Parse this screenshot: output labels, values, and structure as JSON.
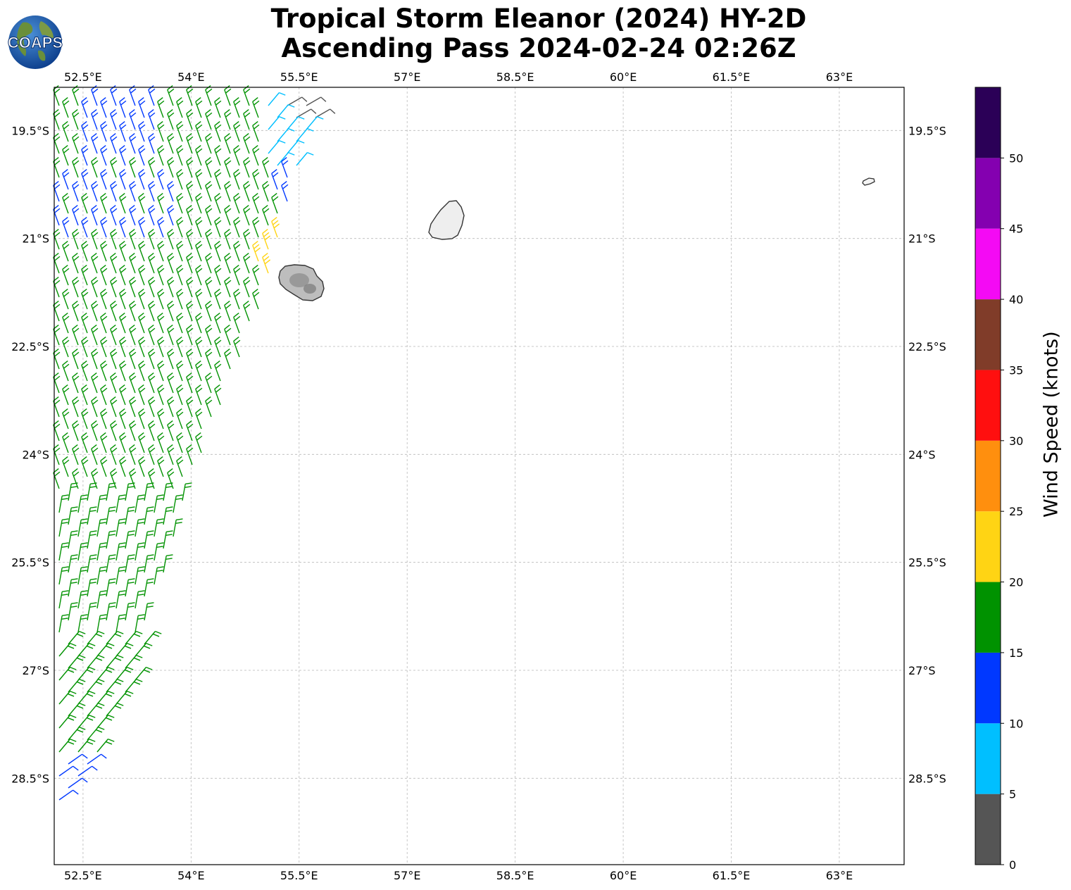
{
  "title": {
    "line1": "Tropical Storm Eleanor (2024) HY-2D",
    "line2": "Ascending Pass 2024-02-24 02:26Z"
  },
  "logo": {
    "text": "COAPS",
    "icon": "globe-logo-icon"
  },
  "map": {
    "lon_range": [
      52.1,
      63.9
    ],
    "lat_range": [
      -29.7,
      -18.9
    ],
    "lon_ticks": [
      52.5,
      54,
      55.5,
      57,
      58.5,
      60,
      61.5,
      63
    ],
    "lon_tick_labels": [
      "52.5°E",
      "54°E",
      "55.5°E",
      "57°E",
      "58.5°E",
      "60°E",
      "61.5°E",
      "63°E"
    ],
    "lat_ticks": [
      -19.5,
      -21,
      -22.5,
      -24,
      -25.5,
      -27,
      -28.5
    ],
    "lat_tick_labels": [
      "19.5°S",
      "21°S",
      "22.5°S",
      "24°S",
      "25.5°S",
      "27°S",
      "28.5°S"
    ],
    "gridlines": true,
    "gridline_style": "dashed",
    "features": [
      "Réunion",
      "Mauritius",
      "Rodrigues"
    ],
    "wind_barbs": "southeasterly trade winds along the swath edge, mostly 15–20 kt, 10–15 kt at the swath edges, 20–25 kt near Réunion, 0–10 kt in the far north"
  },
  "colorbar": {
    "label": "Wind Speed (knots)",
    "ticks": [
      "0",
      "5",
      "10",
      "15",
      "20",
      "25",
      "30",
      "35",
      "40",
      "45",
      "50"
    ],
    "bins": [
      {
        "range": [
          0,
          5
        ],
        "color": "#555555"
      },
      {
        "range": [
          5,
          10
        ],
        "color": "#00bfff"
      },
      {
        "range": [
          10,
          15
        ],
        "color": "#0038ff"
      },
      {
        "range": [
          15,
          20
        ],
        "color": "#009200"
      },
      {
        "range": [
          20,
          25
        ],
        "color": "#ffd414"
      },
      {
        "range": [
          25,
          30
        ],
        "color": "#ff8f0e"
      },
      {
        "range": [
          30,
          35
        ],
        "color": "#ff0f0f"
      },
      {
        "range": [
          35,
          40
        ],
        "color": "#803c29"
      },
      {
        "range": [
          40,
          45
        ],
        "color": "#f40af4"
      },
      {
        "range": [
          45,
          50
        ],
        "color": "#8400b0"
      },
      {
        "range": [
          50,
          55
        ],
        "color": "#2b0057"
      }
    ]
  }
}
